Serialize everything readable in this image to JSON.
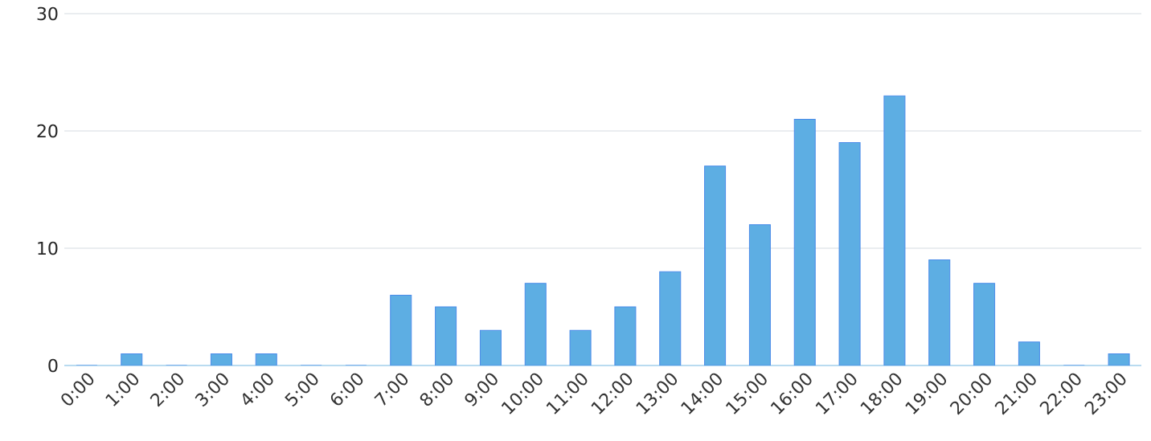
{
  "chart_data": {
    "type": "bar",
    "categories": [
      "0:00",
      "1:00",
      "2:00",
      "3:00",
      "4:00",
      "5:00",
      "6:00",
      "7:00",
      "8:00",
      "9:00",
      "10:00",
      "11:00",
      "12:00",
      "13:00",
      "14:00",
      "15:00",
      "16:00",
      "17:00",
      "18:00",
      "19:00",
      "20:00",
      "21:00",
      "22:00",
      "23:00"
    ],
    "values": [
      0,
      1,
      0,
      1,
      1,
      0,
      0,
      6,
      5,
      3,
      7,
      3,
      5,
      8,
      17,
      12,
      21,
      19,
      23,
      9,
      7,
      2,
      0,
      1
    ],
    "color": "#5daee3",
    "ylim": [
      0,
      30
    ],
    "yticks": [
      0,
      10,
      20,
      30
    ],
    "grid": "y"
  }
}
